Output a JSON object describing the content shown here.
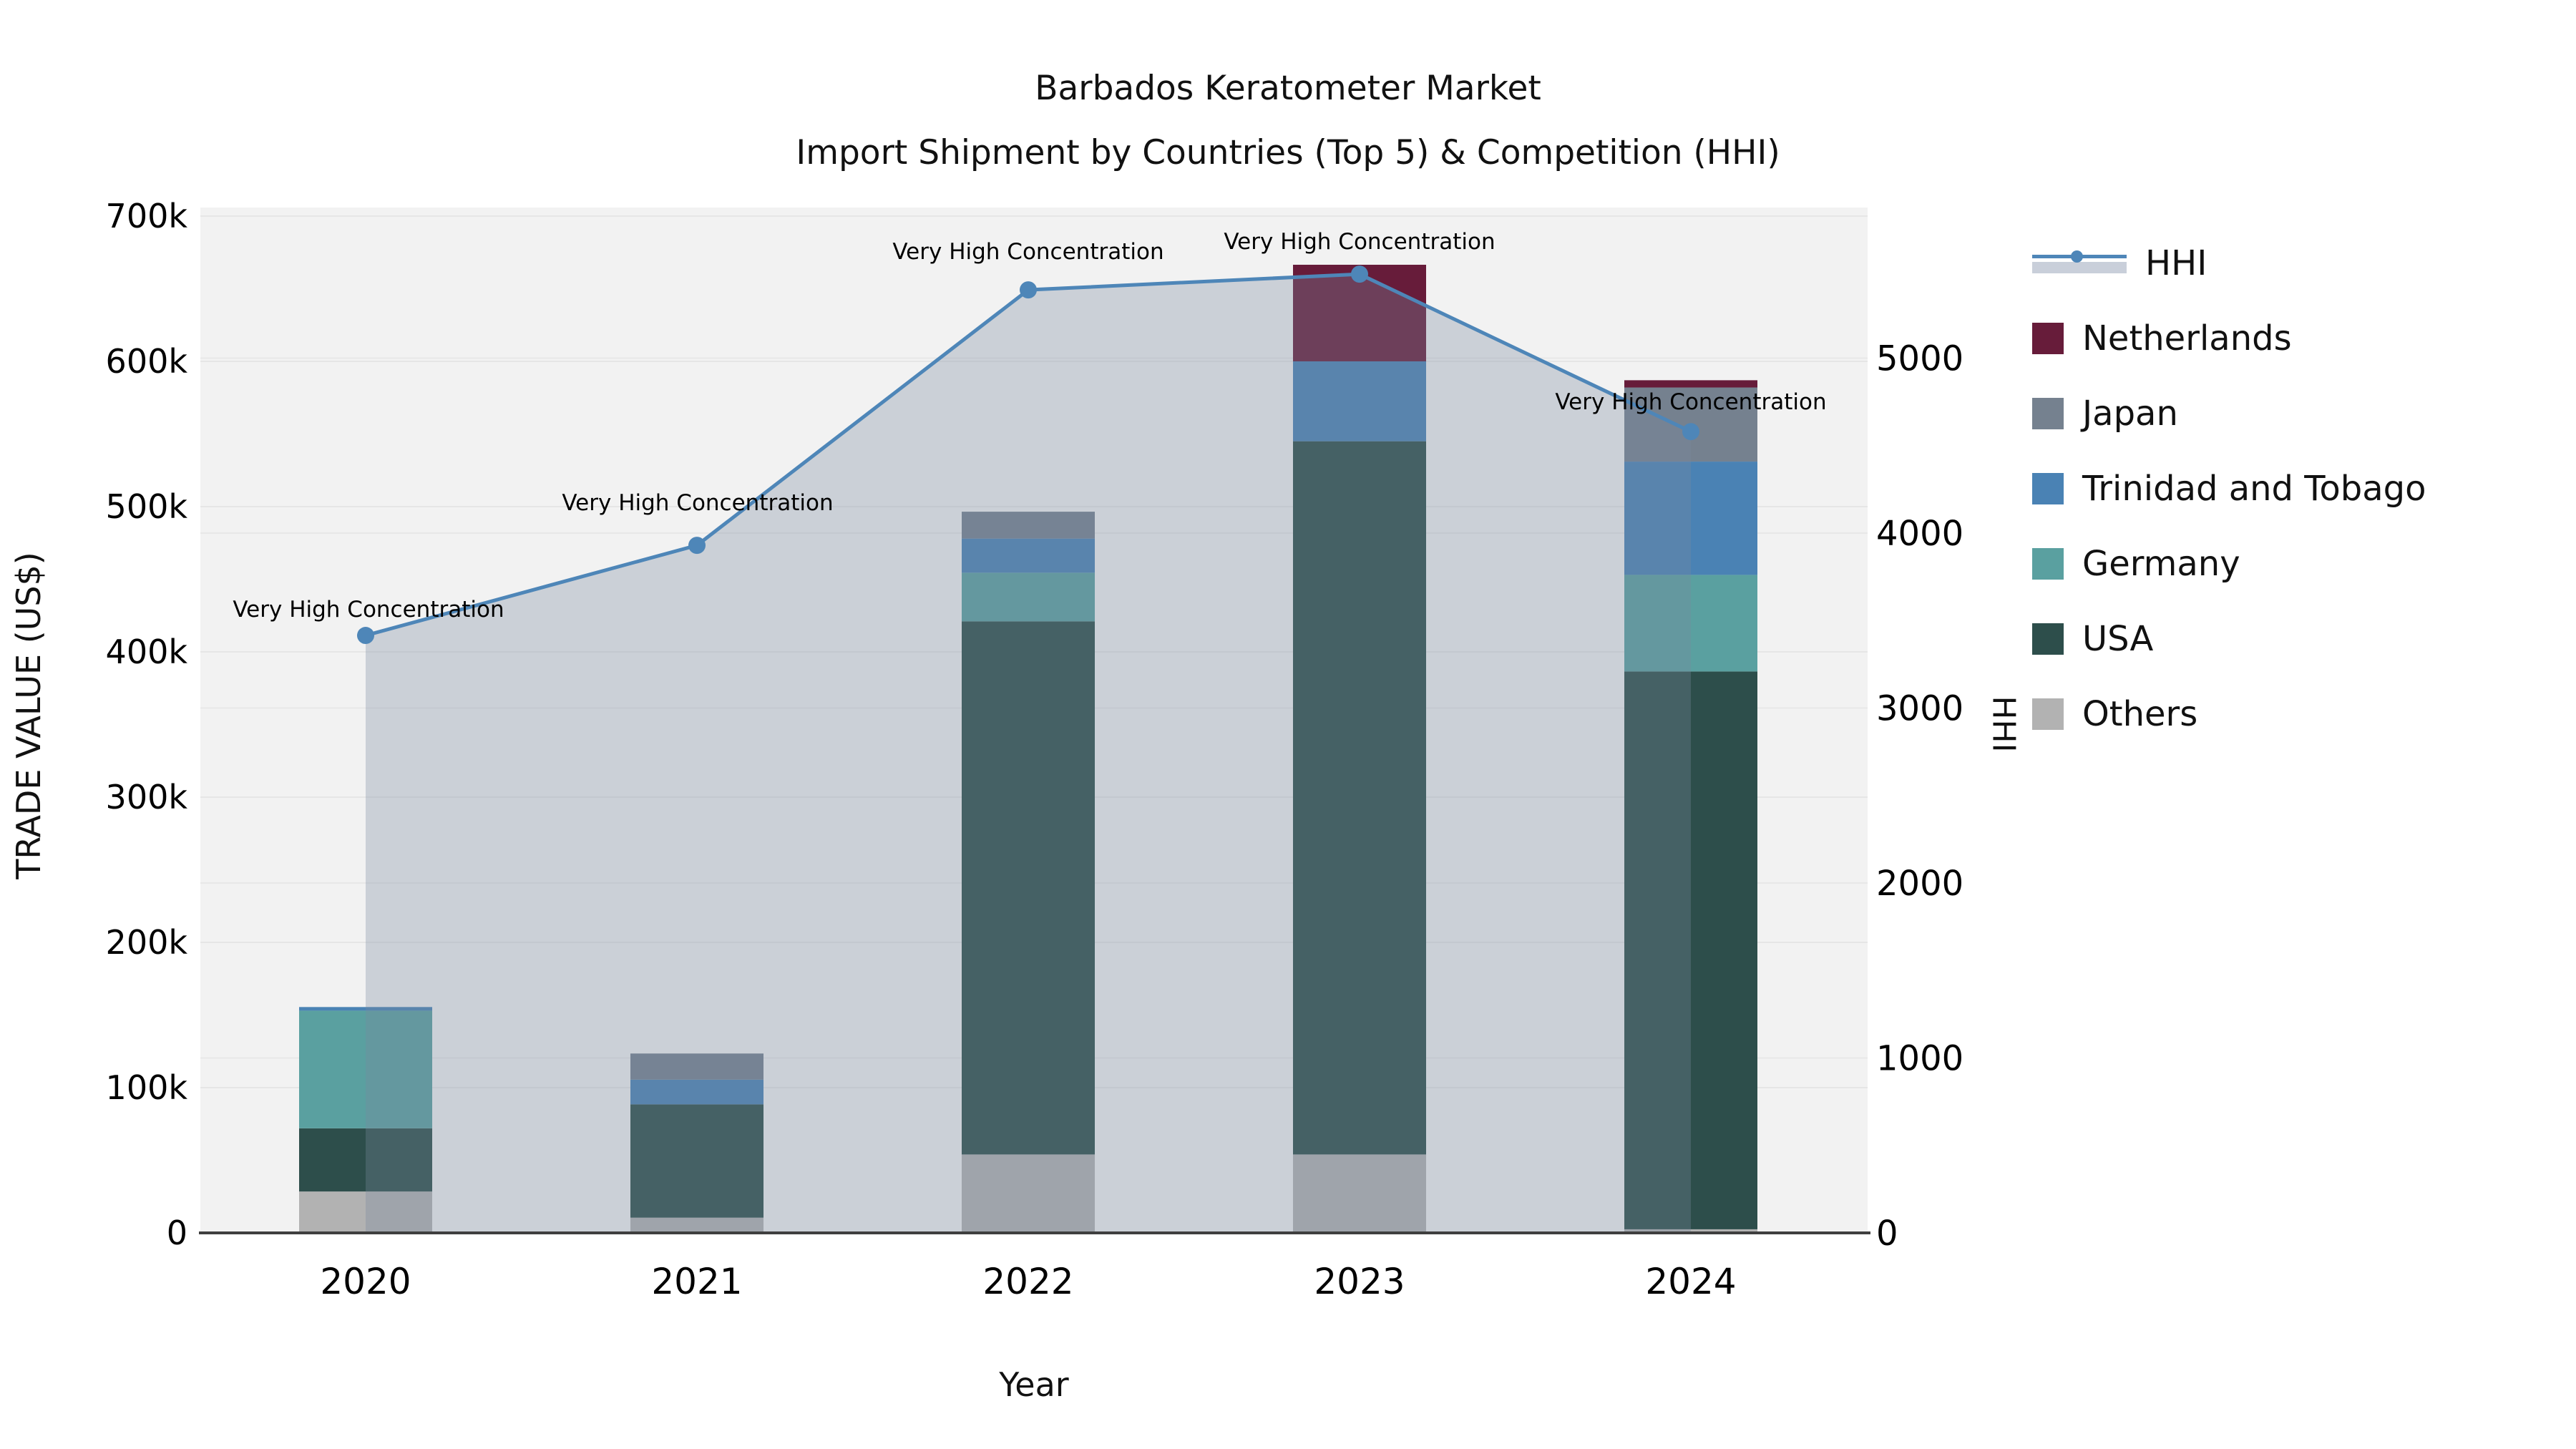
{
  "title": {
    "line1": "Barbados Keratometer Market",
    "line2": "Import Shipment by Countries (Top 5) & Competition (HHI)"
  },
  "axes": {
    "x_label": "Year",
    "y_left_label": "TRADE VALUE (US$)",
    "y_right_label": "HHI",
    "x_ticks": [
      "2020",
      "2021",
      "2022",
      "2023",
      "2024"
    ],
    "y_left_ticks": [
      "0",
      "100k",
      "200k",
      "300k",
      "400k",
      "500k",
      "600k",
      "700k"
    ],
    "y_right_ticks": [
      "0",
      "1000",
      "2000",
      "3000",
      "4000",
      "5000"
    ]
  },
  "legend": {
    "items": [
      {
        "label": "HHI",
        "type": "line",
        "color": "#4E86B8"
      },
      {
        "label": "Netherlands",
        "type": "swatch",
        "color": "#671C3A"
      },
      {
        "label": "Japan",
        "type": "swatch",
        "color": "#75818F"
      },
      {
        "label": "Trinidad and Tobago",
        "type": "swatch",
        "color": "#4A82B4"
      },
      {
        "label": "Germany",
        "type": "swatch",
        "color": "#5AA0A0"
      },
      {
        "label": "USA",
        "type": "swatch",
        "color": "#2D4E4B"
      },
      {
        "label": "Others",
        "type": "swatch",
        "color": "#B2B2B2"
      }
    ]
  },
  "annotations": {
    "labels": [
      "Very High Concentration",
      "Very High Concentration",
      "Very High Concentration",
      "Very High Concentration",
      "Very High Concentration"
    ]
  },
  "chart_data": {
    "type": "bar+line",
    "title": "Barbados Keratometer Market — Import Shipment by Countries (Top 5) & Competition (HHI)",
    "xlabel": "Year",
    "ylabel": "TRADE VALUE (US$)",
    "y2label": "HHI",
    "categories": [
      "2020",
      "2021",
      "2022",
      "2023",
      "2024"
    ],
    "stack_order_bottom_to_top": [
      "Others",
      "USA",
      "Germany",
      "Trinidad and Tobago",
      "Japan",
      "Netherlands"
    ],
    "series": [
      {
        "name": "Others",
        "color": "#B2B2B2",
        "values": [
          28500,
          10500,
          54000,
          54000,
          2500
        ]
      },
      {
        "name": "USA",
        "color": "#2D4E4B",
        "values": [
          43500,
          78000,
          367000,
          491000,
          384000
        ]
      },
      {
        "name": "Germany",
        "color": "#5AA0A0",
        "values": [
          81000,
          0,
          33500,
          0,
          66500
        ]
      },
      {
        "name": "Trinidad and Tobago",
        "color": "#4A82B4",
        "values": [
          2500,
          17000,
          23500,
          55000,
          78000
        ]
      },
      {
        "name": "Japan",
        "color": "#75818F",
        "values": [
          0,
          18000,
          18500,
          0,
          51000
        ]
      },
      {
        "name": "Netherlands",
        "color": "#671C3A",
        "values": [
          0,
          0,
          0,
          66500,
          5000
        ]
      }
    ],
    "bar_totals": [
      155500,
      123500,
      496500,
      666500,
      587000
    ],
    "line": {
      "name": "HHI",
      "color": "#4E86B8",
      "fill_color": "rgba(120,136,158,0.32)",
      "values": [
        3415,
        3930,
        5390,
        5480,
        4580
      ]
    },
    "ylim": [
      0,
      700000
    ],
    "y2lim": [
      0,
      5860
    ],
    "grid": true,
    "legend_position": "right"
  }
}
